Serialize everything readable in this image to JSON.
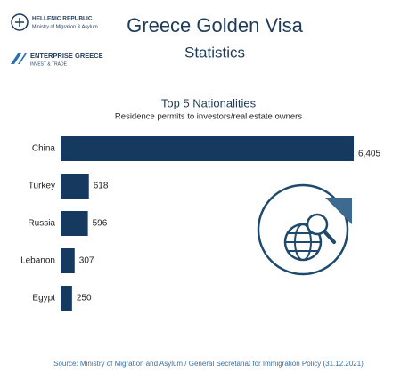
{
  "header": {
    "republic": "HELLENIC REPUBLIC",
    "ministry": "Ministry of Migration & Asylum",
    "agency": "ENTERPRISE GREECE",
    "agency_tagline": "INVEST & TRADE",
    "title": "Greece Golden Visa",
    "subtitle": "Statistics"
  },
  "chart_data": {
    "type": "hbar",
    "title": "Top 5 Nationalities",
    "subtitle": "Residence permits to investors/real estate owners",
    "categories": [
      "China",
      "Turkey",
      "Russia",
      "Lebanon",
      "Egypt"
    ],
    "values": [
      6405,
      618,
      596,
      307,
      250
    ],
    "value_labels": [
      "6,405",
      "618",
      "596",
      "307",
      "250"
    ],
    "color": "#163a5f"
  },
  "source": "Source: Ministry of Migration and Asylum / General Secretariat for Immigration Policy (31.12.2021)"
}
